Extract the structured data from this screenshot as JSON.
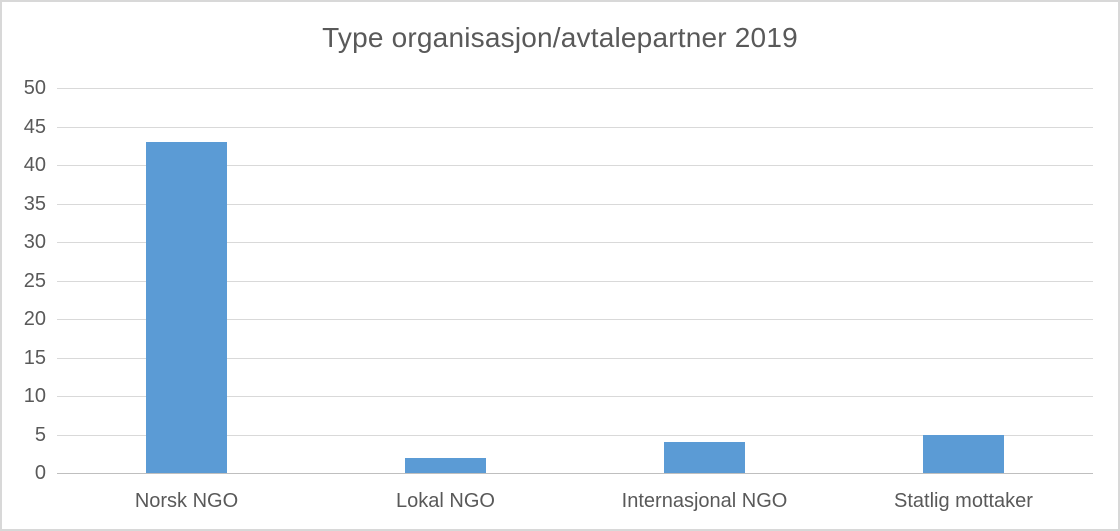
{
  "chart_data": {
    "type": "bar",
    "title": "Type organisasjon/avtalepartner 2019",
    "categories": [
      "Norsk NGO",
      "Lokal NGO",
      "Internasjonal NGO",
      "Statlig mottaker"
    ],
    "values": [
      43,
      2,
      4,
      5
    ],
    "xlabel": "",
    "ylabel": "",
    "ylim": [
      0,
      50
    ],
    "ytick_step": 5,
    "ytick_labels": [
      "0",
      "5",
      "10",
      "15",
      "20",
      "25",
      "30",
      "35",
      "40",
      "45",
      "50"
    ],
    "grid": true,
    "legend_position": "none",
    "colors": {
      "bar": "#5b9bd5",
      "gridline": "#d9d9d9",
      "axis_line": "#bfbfbf",
      "text": "#595959",
      "frame_border": "#d8d8d8",
      "background": "#ffffff"
    }
  }
}
